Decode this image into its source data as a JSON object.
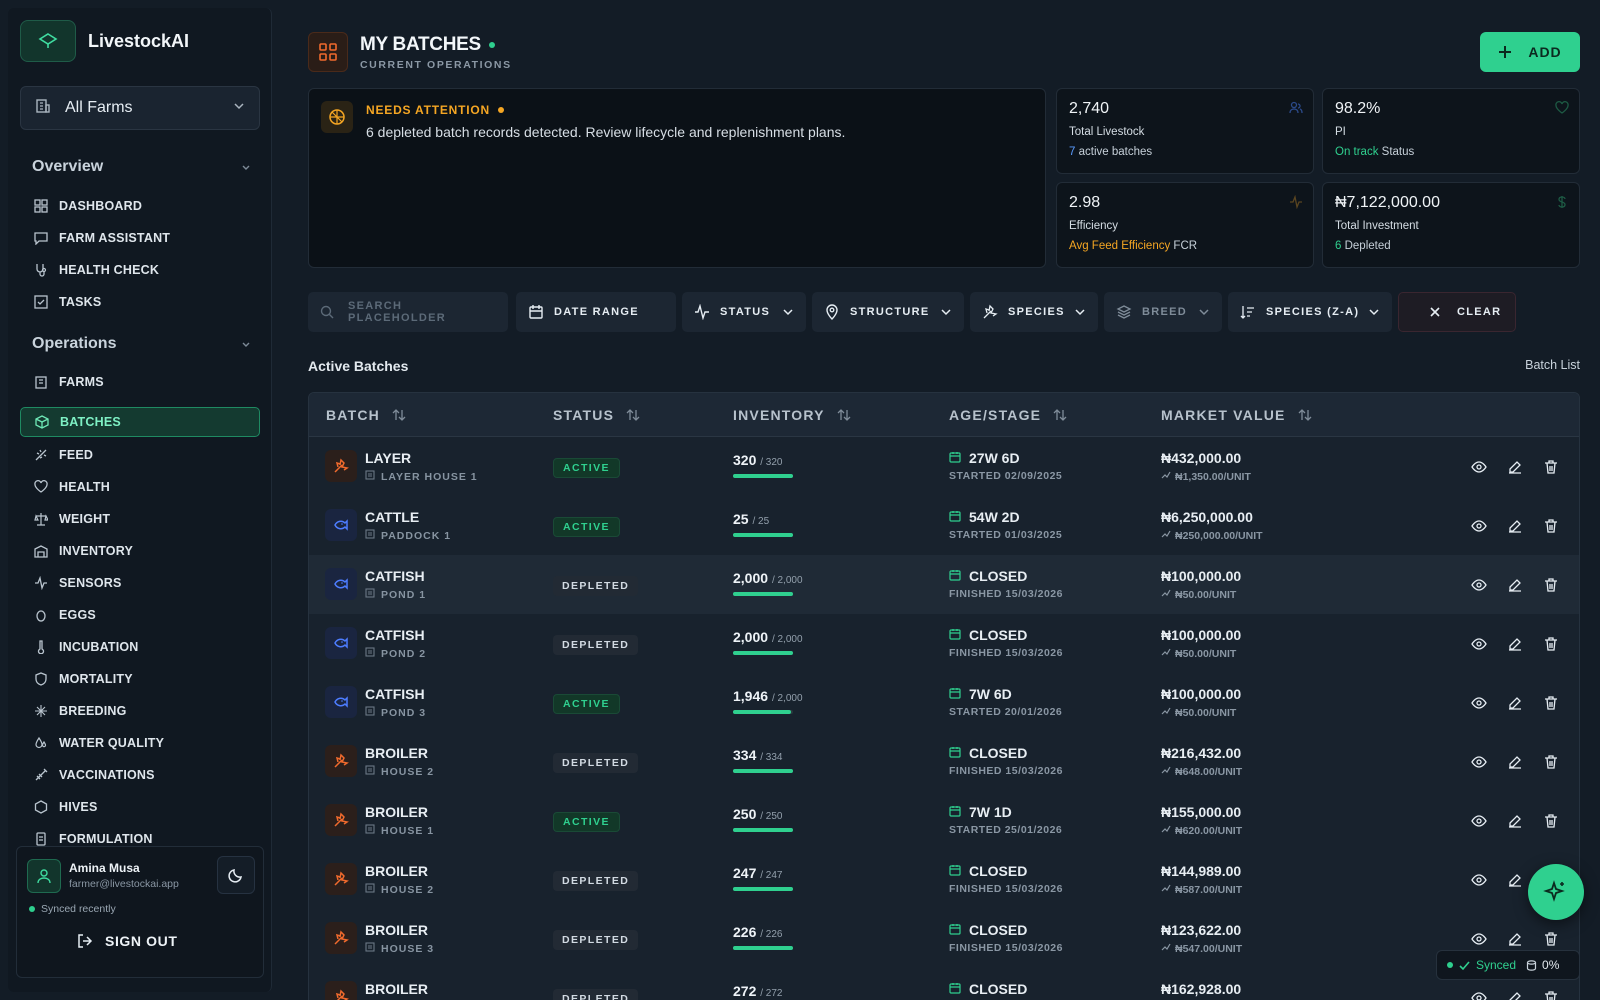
{
  "app": {
    "name": "LivestockAI"
  },
  "farm_selector": {
    "value": "All Farms"
  },
  "sidebar": {
    "overview": {
      "title": "Overview",
      "items": [
        {
          "label": "DASHBOARD",
          "icon": "dashboard-icon"
        },
        {
          "label": "FARM ASSISTANT",
          "icon": "chat-icon"
        },
        {
          "label": "HEALTH CHECK",
          "icon": "stethoscope-icon"
        },
        {
          "label": "TASKS",
          "icon": "checkbox-icon"
        }
      ]
    },
    "operations": {
      "title": "Operations",
      "items": [
        {
          "label": "FARMS",
          "icon": "building-icon"
        },
        {
          "label": "BATCHES",
          "icon": "box-icon",
          "active": true
        },
        {
          "label": "FEED",
          "icon": "wheat-icon"
        },
        {
          "label": "HEALTH",
          "icon": "heart-pulse-icon"
        },
        {
          "label": "WEIGHT",
          "icon": "scale-icon"
        },
        {
          "label": "INVENTORY",
          "icon": "warehouse-icon"
        },
        {
          "label": "SENSORS",
          "icon": "activity-icon"
        },
        {
          "label": "EGGS",
          "icon": "egg-icon"
        },
        {
          "label": "INCUBATION",
          "icon": "thermometer-icon"
        },
        {
          "label": "MORTALITY",
          "icon": "shield-icon"
        },
        {
          "label": "BREEDING",
          "icon": "sparkle-icon"
        },
        {
          "label": "WATER QUALITY",
          "icon": "droplets-icon"
        },
        {
          "label": "VACCINATIONS",
          "icon": "syringe-icon"
        },
        {
          "label": "HIVES",
          "icon": "hexagon-icon"
        },
        {
          "label": "FORMULATION",
          "icon": "flask-icon"
        }
      ]
    }
  },
  "user": {
    "name": "Amina Musa",
    "email": "farmer@livestockai.app",
    "sync_status": "Synced recently",
    "signout_label": "SIGN OUT"
  },
  "header": {
    "title": "MY BATCHES",
    "subtitle": "CURRENT OPERATIONS",
    "add_label": "ADD"
  },
  "attention": {
    "title": "NEEDS ATTENTION",
    "message": "6 depleted batch records detected. Review lifecycle and replenishment plans."
  },
  "stats": {
    "livestock": {
      "value": "2,740",
      "label": "Total Livestock",
      "count": "7",
      "sub": "active batches"
    },
    "pi": {
      "value": "98.2%",
      "label": "PI",
      "status": "On track",
      "sub": "Status"
    },
    "efficiency": {
      "value": "2.98",
      "label": "Efficiency",
      "highlight": "Avg Feed Efficiency",
      "sub": "FCR"
    },
    "investment": {
      "value": "₦7,122,000.00",
      "label": "Total Investment",
      "count": "6",
      "sub": "Depleted"
    }
  },
  "filters": {
    "search_placeholder": "SEARCH PLACEHOLDER",
    "date_range": "DATE RANGE",
    "status": "STATUS",
    "structure": "STRUCTURE",
    "species": "SPECIES",
    "breed": "BREED",
    "sort": "SPECIES (Z-A)",
    "clear": "CLEAR"
  },
  "list": {
    "title": "Active Batches",
    "view_label": "Batch List"
  },
  "table": {
    "columns": {
      "batch": "BATCH",
      "status": "STATUS",
      "inventory": "INVENTORY",
      "age": "AGE/STAGE",
      "market": "MARKET VALUE"
    },
    "rows": [
      {
        "species": "LAYER",
        "location": "LAYER HOUSE 1",
        "status": "ACTIVE",
        "count": "320",
        "total": "/ 320",
        "fill": 1.0,
        "age": "27W 6D",
        "age_sub": "STARTED 02/09/2025",
        "value": "₦432,000.00",
        "unit": "₦1,350.00/UNIT",
        "kind": "bird"
      },
      {
        "species": "CATTLE",
        "location": "PADDOCK 1",
        "status": "ACTIVE",
        "count": "25",
        "total": "/ 25",
        "fill": 1.0,
        "age": "54W 2D",
        "age_sub": "STARTED 01/03/2025",
        "value": "₦6,250,000.00",
        "unit": "₦250,000.00/UNIT",
        "kind": "fish"
      },
      {
        "species": "CATFISH",
        "location": "POND 1",
        "status": "DEPLETED",
        "count": "2,000",
        "total": "/ 2,000",
        "fill": 1.0,
        "age": "CLOSED",
        "age_sub": "FINISHED 15/03/2026",
        "value": "₦100,000.00",
        "unit": "₦50.00/UNIT",
        "kind": "fish"
      },
      {
        "species": "CATFISH",
        "location": "POND 2",
        "status": "DEPLETED",
        "count": "2,000",
        "total": "/ 2,000",
        "fill": 1.0,
        "age": "CLOSED",
        "age_sub": "FINISHED 15/03/2026",
        "value": "₦100,000.00",
        "unit": "₦50.00/UNIT",
        "kind": "fish"
      },
      {
        "species": "CATFISH",
        "location": "POND 3",
        "status": "ACTIVE",
        "count": "1,946",
        "total": "/ 2,000",
        "fill": 0.973,
        "age": "7W 6D",
        "age_sub": "STARTED 20/01/2026",
        "value": "₦100,000.00",
        "unit": "₦50.00/UNIT",
        "kind": "fish"
      },
      {
        "species": "BROILER",
        "location": "HOUSE 2",
        "status": "DEPLETED",
        "count": "334",
        "total": "/ 334",
        "fill": 1.0,
        "age": "CLOSED",
        "age_sub": "FINISHED 15/03/2026",
        "value": "₦216,432.00",
        "unit": "₦648.00/UNIT",
        "kind": "bird"
      },
      {
        "species": "BROILER",
        "location": "HOUSE 1",
        "status": "ACTIVE",
        "count": "250",
        "total": "/ 250",
        "fill": 1.0,
        "age": "7W 1D",
        "age_sub": "STARTED 25/01/2026",
        "value": "₦155,000.00",
        "unit": "₦620.00/UNIT",
        "kind": "bird"
      },
      {
        "species": "BROILER",
        "location": "HOUSE 2",
        "status": "DEPLETED",
        "count": "247",
        "total": "/ 247",
        "fill": 1.0,
        "age": "CLOSED",
        "age_sub": "FINISHED 15/03/2026",
        "value": "₦144,989.00",
        "unit": "₦587.00/UNIT",
        "kind": "bird"
      },
      {
        "species": "BROILER",
        "location": "HOUSE 3",
        "status": "DEPLETED",
        "count": "226",
        "total": "/ 226",
        "fill": 1.0,
        "age": "CLOSED",
        "age_sub": "FINISHED 15/03/2026",
        "value": "₦123,622.00",
        "unit": "₦547.00/UNIT",
        "kind": "bird"
      },
      {
        "species": "BROILER",
        "location": "",
        "status": "DEPLETED",
        "count": "272",
        "total": "/ 272",
        "fill": 1.0,
        "age": "CLOSED",
        "age_sub": "",
        "value": "₦162,928.00",
        "unit": "",
        "kind": "bird"
      }
    ]
  },
  "sync_pill": {
    "label": "Synced",
    "percent": "0%"
  },
  "colors": {
    "accent": "#2fd08f",
    "warning": "#f5a623",
    "background": "#131c26"
  }
}
